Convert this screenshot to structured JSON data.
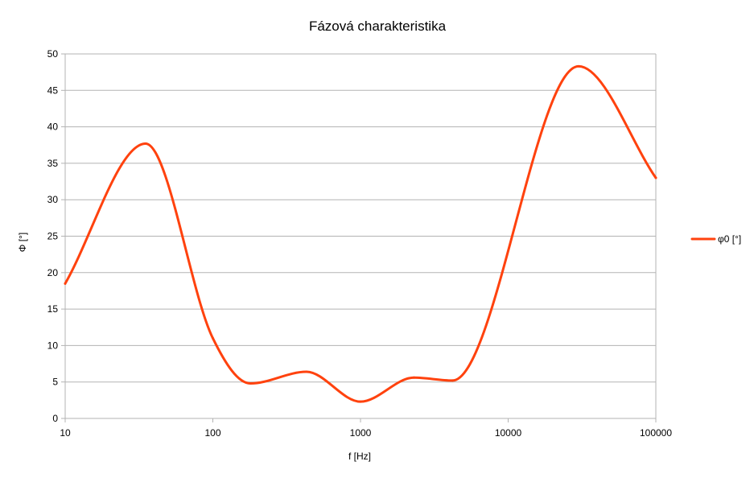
{
  "chart_data": {
    "type": "line",
    "title": "Fázová charakteristika",
    "xlabel": "f [Hz]",
    "ylabel": "Φ [°]",
    "x_scale": "log",
    "xlim": [
      10,
      100000
    ],
    "ylim": [
      0,
      50
    ],
    "x_ticks": [
      "10",
      "100",
      "1000",
      "10000",
      "100000"
    ],
    "y_ticks": [
      "0",
      "5",
      "10",
      "15",
      "20",
      "25",
      "30",
      "35",
      "40",
      "45",
      "50"
    ],
    "grid": true,
    "legend_position": "right",
    "series": [
      {
        "name": "φ0 [°]",
        "color": "#ff420e",
        "smooth": true,
        "x": [
          10,
          35,
          100,
          180,
          430,
          1000,
          2300,
          4200,
          30000,
          100000
        ],
        "y": [
          18.5,
          37.7,
          11,
          4.8,
          6.4,
          2.3,
          5.6,
          5.2,
          48.3,
          33
        ]
      }
    ]
  }
}
